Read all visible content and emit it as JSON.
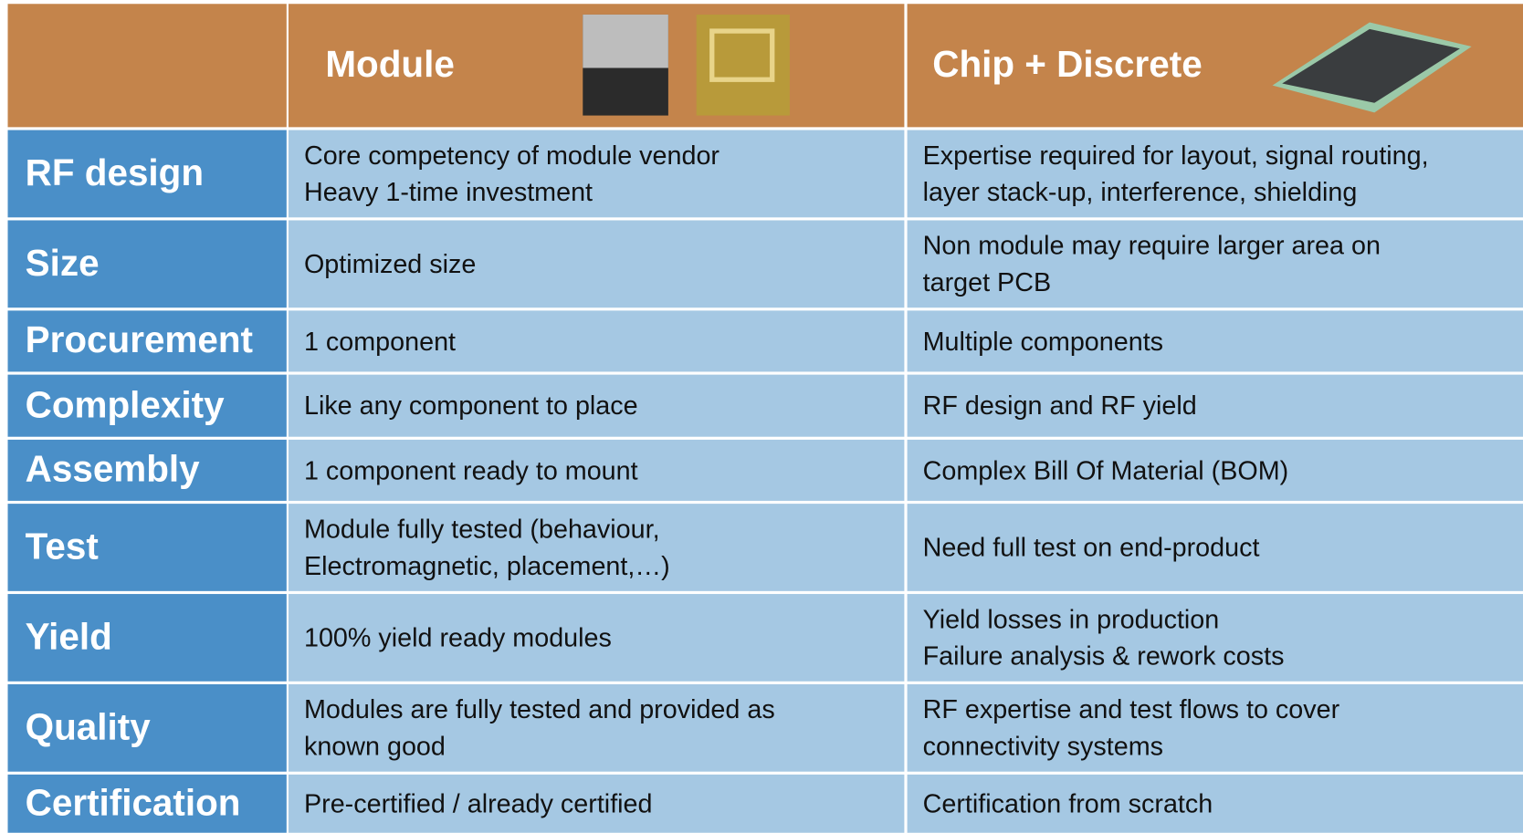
{
  "header": {
    "columns": [
      "Module",
      "Chip + Discrete"
    ]
  },
  "table": {
    "rows": [
      {
        "label": "RF design",
        "module": [
          "Core competency of module vendor",
          "Heavy 1-time investment"
        ],
        "chip": [
          "Expertise required for layout, signal routing,",
          "layer stack-up, interference, shielding"
        ]
      },
      {
        "label": "Size",
        "module": [
          "Optimized size"
        ],
        "chip": [
          "Non module may require larger area on",
          "target PCB"
        ]
      },
      {
        "label": "Procurement",
        "module": [
          "1 component"
        ],
        "chip": [
          "Multiple components"
        ]
      },
      {
        "label": "Complexity",
        "module": [
          "Like any component to place"
        ],
        "chip": [
          "RF design and RF yield"
        ]
      },
      {
        "label": "Assembly",
        "module": [
          "1 component ready to mount"
        ],
        "chip": [
          "Complex Bill Of Material (BOM)"
        ]
      },
      {
        "label": "Test",
        "module": [
          "Module fully tested (behaviour,",
          "Electromagnetic, placement,…)"
        ],
        "chip": [
          "Need full test on end-product"
        ]
      },
      {
        "label": "Yield",
        "module": [
          "100% yield ready modules"
        ],
        "chip": [
          "Yield losses in production",
          "Failure analysis & rework costs"
        ]
      },
      {
        "label": "Quality",
        "module": [
          "Modules are fully tested and provided as",
          "known good"
        ],
        "chip": [
          "RF expertise and test flows to cover",
          "connectivity systems"
        ]
      },
      {
        "label": "Certification",
        "module": [
          "Pre-certified / already certified"
        ],
        "chip": [
          "Certification from scratch"
        ]
      }
    ]
  }
}
